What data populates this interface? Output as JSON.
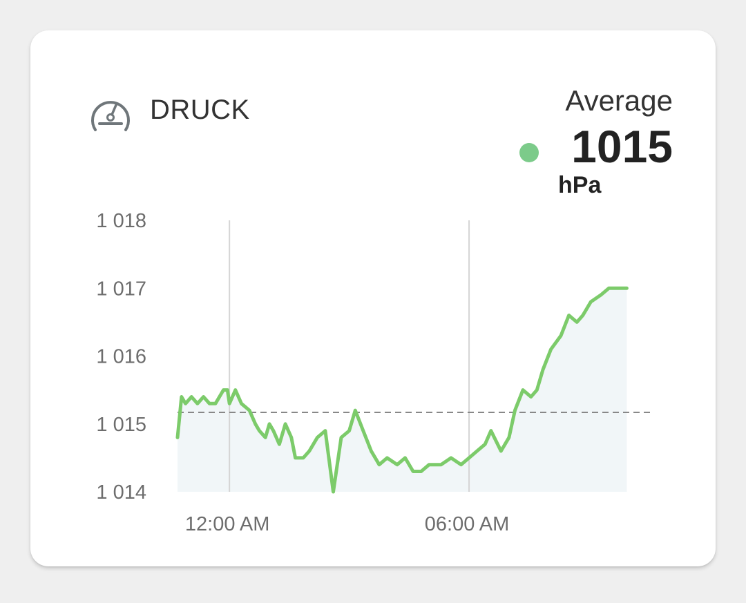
{
  "card": {
    "title": "DRUCK",
    "icon": "gauge-icon",
    "average_label": "Average",
    "average_value": "1015",
    "average_unit": "hPa",
    "indicator_color": "#7ccb8a"
  },
  "chart_data": {
    "type": "area",
    "y_ticks": [
      "1 018",
      "1 017",
      "1 016",
      "1 015",
      "1 014"
    ],
    "ylim": [
      1014,
      1018
    ],
    "x_ticks": [
      {
        "label": "12:00 AM",
        "x": 0
      },
      {
        "label": "06:00 AM",
        "x": 6
      }
    ],
    "xlim": [
      -1.3,
      10.6
    ],
    "vertical_grid_at": [
      0,
      6
    ],
    "average_line": 1015.17,
    "line_color": "#7ccb6a",
    "fill_color": "#f1f6f8",
    "average_line_color": "#888888",
    "series": [
      {
        "points": [
          [
            -1.3,
            1014.8
          ],
          [
            -1.2,
            1015.4
          ],
          [
            -1.1,
            1015.3
          ],
          [
            -0.95,
            1015.4
          ],
          [
            -0.8,
            1015.3
          ],
          [
            -0.65,
            1015.4
          ],
          [
            -0.5,
            1015.3
          ],
          [
            -0.35,
            1015.3
          ],
          [
            -0.25,
            1015.4
          ],
          [
            -0.15,
            1015.5
          ],
          [
            -0.05,
            1015.5
          ],
          [
            0.0,
            1015.3
          ],
          [
            0.15,
            1015.5
          ],
          [
            0.3,
            1015.3
          ],
          [
            0.5,
            1015.2
          ],
          [
            0.65,
            1015.0
          ],
          [
            0.75,
            1014.9
          ],
          [
            0.9,
            1014.8
          ],
          [
            1.0,
            1015.0
          ],
          [
            1.1,
            1014.9
          ],
          [
            1.25,
            1014.7
          ],
          [
            1.4,
            1015.0
          ],
          [
            1.55,
            1014.8
          ],
          [
            1.65,
            1014.5
          ],
          [
            1.85,
            1014.5
          ],
          [
            2.0,
            1014.6
          ],
          [
            2.2,
            1014.8
          ],
          [
            2.4,
            1014.9
          ],
          [
            2.6,
            1014.0
          ],
          [
            2.8,
            1014.8
          ],
          [
            3.0,
            1014.9
          ],
          [
            3.15,
            1015.2
          ],
          [
            3.35,
            1014.9
          ],
          [
            3.55,
            1014.6
          ],
          [
            3.75,
            1014.4
          ],
          [
            3.95,
            1014.5
          ],
          [
            4.2,
            1014.4
          ],
          [
            4.4,
            1014.5
          ],
          [
            4.6,
            1014.3
          ],
          [
            4.8,
            1014.3
          ],
          [
            5.0,
            1014.4
          ],
          [
            5.3,
            1014.4
          ],
          [
            5.55,
            1014.5
          ],
          [
            5.8,
            1014.4
          ],
          [
            6.0,
            1014.5
          ],
          [
            6.2,
            1014.6
          ],
          [
            6.4,
            1014.7
          ],
          [
            6.55,
            1014.9
          ],
          [
            6.8,
            1014.6
          ],
          [
            7.0,
            1014.8
          ],
          [
            7.15,
            1015.2
          ],
          [
            7.35,
            1015.5
          ],
          [
            7.55,
            1015.4
          ],
          [
            7.7,
            1015.5
          ],
          [
            7.85,
            1015.8
          ],
          [
            8.05,
            1016.1
          ],
          [
            8.3,
            1016.3
          ],
          [
            8.5,
            1016.6
          ],
          [
            8.7,
            1016.5
          ],
          [
            8.85,
            1016.6
          ],
          [
            9.05,
            1016.8
          ],
          [
            9.3,
            1016.9
          ],
          [
            9.5,
            1017.0
          ],
          [
            9.7,
            1017.0
          ],
          [
            9.95,
            1017.0
          ]
        ]
      }
    ]
  }
}
